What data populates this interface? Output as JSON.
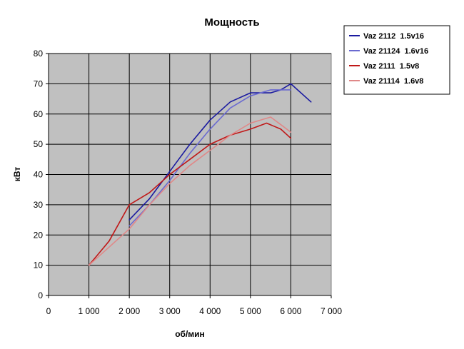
{
  "chart_data": {
    "type": "line",
    "title": "Мощность",
    "xlabel": "об/мин",
    "ylabel": "кВт",
    "xlim": [
      0,
      7000
    ],
    "ylim": [
      0,
      80
    ],
    "x_ticks": [
      0,
      1000,
      2000,
      3000,
      4000,
      5000,
      6000,
      7000
    ],
    "x_tick_labels": [
      "0",
      "1 000",
      "2 000",
      "3 000",
      "4 000",
      "5 000",
      "6 000",
      "7 000"
    ],
    "y_ticks": [
      0,
      10,
      20,
      30,
      40,
      50,
      60,
      70,
      80
    ],
    "y_tick_labels": [
      "0",
      "10",
      "20",
      "30",
      "40",
      "50",
      "60",
      "70",
      "80"
    ],
    "grid": true,
    "plot_background": "#c0c0c0",
    "legend_position": "right",
    "series": [
      {
        "name": "Vaz 2112  1.5v16",
        "color": "#1a1aa0",
        "x": [
          2000,
          2500,
          3000,
          3500,
          4000,
          4500,
          5000,
          5250,
          5500,
          5750,
          6000,
          6500
        ],
        "y": [
          25,
          32,
          41,
          50,
          58,
          64,
          67,
          67,
          67,
          68,
          70,
          64
        ]
      },
      {
        "name": "Vaz 21124  1.6v16",
        "color": "#6a6ad0",
        "x": [
          2000,
          2500,
          3000,
          3500,
          4000,
          4500,
          5000,
          5500,
          6000
        ],
        "y": [
          23,
          30,
          38,
          47,
          55,
          62,
          66,
          68,
          68
        ]
      },
      {
        "name": "Vaz 2111  1.5v8",
        "color": "#c01818",
        "x": [
          1000,
          1250,
          1500,
          1750,
          2000,
          2250,
          2500,
          3000,
          3500,
          4000,
          4500,
          5000,
          5400,
          5750,
          6000
        ],
        "y": [
          10,
          14,
          18,
          24,
          30,
          32,
          34,
          40,
          45,
          50,
          53,
          55,
          57,
          55,
          52
        ]
      },
      {
        "name": "Vaz 21114  1.6v8",
        "color": "#e08888",
        "x": [
          1000,
          1500,
          2000,
          2500,
          3000,
          3500,
          4000,
          4500,
          5000,
          5500,
          6000
        ],
        "y": [
          10,
          16,
          22,
          30,
          37,
          43,
          48,
          53,
          57,
          59,
          54
        ]
      }
    ]
  }
}
